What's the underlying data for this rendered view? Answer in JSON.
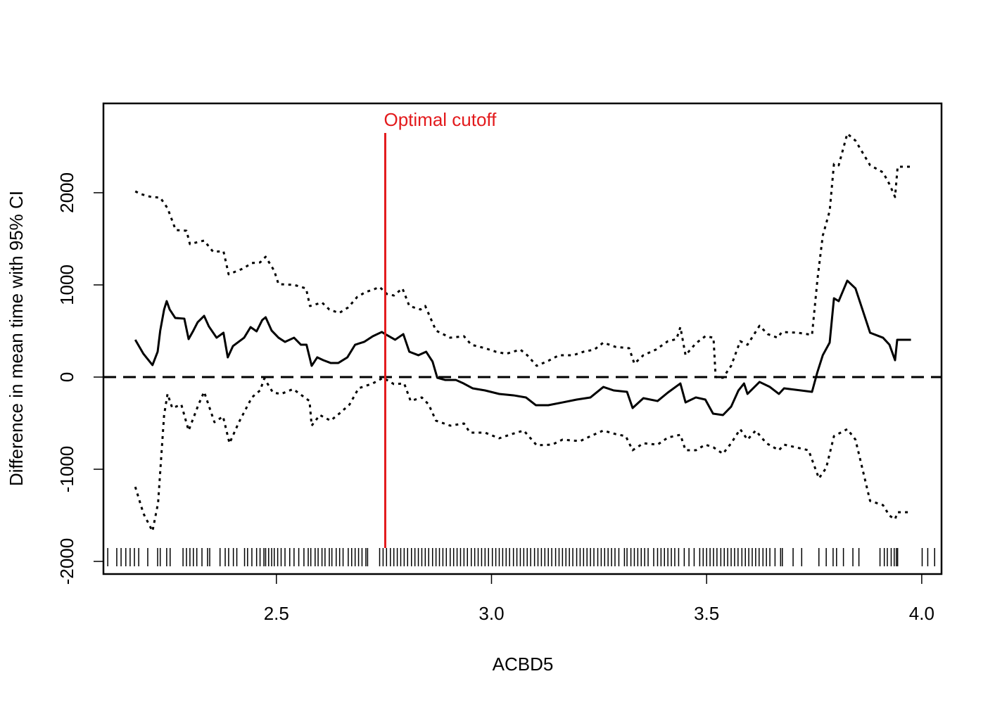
{
  "chart_data": {
    "type": "line",
    "x_label": "ACBD5",
    "y_label": "Difference in mean time with 95% CI",
    "xlim": [
      2.098,
      4.046
    ],
    "ylim": [
      -2137,
      2969
    ],
    "xticks": [
      2.5,
      {
        "value": 3,
        "label": "3.0"
      },
      3.5,
      {
        "value": 4,
        "label": "4.0"
      }
    ],
    "yticks": [
      -2000,
      -1000,
      0,
      1000,
      2000
    ],
    "reference_line": 0,
    "cutoff": 2.753,
    "cutoff_label": "Optimal cutoff",
    "cutoff_color": "#e31a1c",
    "series": [
      {
        "color": "#000000",
        "style": "solid",
        "x": [
          2.172,
          2.191,
          2.212,
          2.224,
          2.23,
          2.239,
          2.245,
          2.252,
          2.265,
          2.286,
          2.296,
          2.307,
          2.317,
          2.332,
          2.343,
          2.361,
          2.377,
          2.387,
          2.399,
          2.425,
          2.44,
          2.454,
          2.467,
          2.475,
          2.489,
          2.505,
          2.52,
          2.541,
          2.557,
          2.57,
          2.582,
          2.595,
          2.609,
          2.626,
          2.644,
          2.665,
          2.683,
          2.704,
          2.724,
          2.745,
          2.753,
          2.776,
          2.795,
          2.809,
          2.83,
          2.848,
          2.863,
          2.874,
          2.892,
          2.917,
          2.935,
          2.956,
          2.985,
          3.018,
          3.051,
          3.08,
          3.103,
          3.132,
          3.165,
          3.198,
          3.23,
          3.26,
          3.284,
          3.315,
          3.328,
          3.353,
          3.386,
          3.41,
          3.439,
          3.451,
          3.475,
          3.497,
          3.515,
          3.538,
          3.557,
          3.574,
          3.587,
          3.595,
          3.623,
          3.647,
          3.668,
          3.68,
          3.745,
          3.757,
          3.77,
          3.786,
          3.796,
          3.807,
          3.827,
          3.846,
          3.88,
          3.91,
          3.925,
          3.938,
          3.943,
          3.975
        ],
        "values": [
          405,
          252,
          130,
          275,
          504,
          733,
          824,
          733,
          641,
          634,
          412,
          504,
          595,
          664,
          550,
          427,
          481,
          214,
          336,
          427,
          542,
          496,
          618,
          649,
          504,
          427,
          382,
          427,
          351,
          351,
          122,
          214,
          183,
          153,
          153,
          214,
          351,
          382,
          443,
          489,
          466,
          405,
          466,
          275,
          237,
          275,
          168,
          -8,
          -31,
          -31,
          -69,
          -122,
          -145,
          -183,
          -198,
          -221,
          -305,
          -305,
          -275,
          -244,
          -221,
          -107,
          -145,
          -160,
          -336,
          -229,
          -260,
          -168,
          -69,
          -275,
          -221,
          -244,
          -397,
          -412,
          -321,
          -145,
          -69,
          -183,
          -53,
          -107,
          -183,
          -122,
          -160,
          46,
          237,
          374,
          855,
          824,
          1046,
          962,
          481,
          427,
          351,
          183,
          405,
          405
        ]
      },
      {
        "color": "#000000",
        "style": "dotted",
        "x": [
          2.172,
          2.185,
          2.209,
          2.23,
          2.247,
          2.266,
          2.291,
          2.299,
          2.332,
          2.353,
          2.377,
          2.389,
          2.422,
          2.443,
          2.462,
          2.475,
          2.495,
          2.505,
          2.541,
          2.569,
          2.578,
          2.606,
          2.623,
          2.646,
          2.667,
          2.688,
          2.708,
          2.724,
          2.74,
          2.757,
          2.773,
          2.793,
          2.809,
          2.835,
          2.846,
          2.871,
          2.904,
          2.936,
          2.953,
          2.985,
          3.01,
          3.034,
          3.067,
          3.083,
          3.105,
          3.132,
          3.157,
          3.19,
          3.214,
          3.239,
          3.26,
          3.288,
          3.32,
          3.332,
          3.353,
          3.382,
          3.41,
          3.43,
          3.439,
          3.451,
          3.475,
          3.497,
          3.516,
          3.521,
          3.538,
          3.557,
          3.578,
          3.595,
          3.623,
          3.642,
          3.665,
          3.675,
          3.712,
          3.745,
          3.758,
          3.77,
          3.786,
          3.796,
          3.807,
          3.827,
          3.846,
          3.88,
          3.91,
          3.925,
          3.938,
          3.944,
          3.975
        ],
        "values": [
          2015,
          1985,
          1954,
          1947,
          1832,
          1595,
          1588,
          1443,
          1481,
          1359,
          1366,
          1115,
          1176,
          1237,
          1244,
          1305,
          1153,
          1008,
          1000,
          962,
          771,
          809,
          733,
          695,
          756,
          870,
          924,
          947,
          977,
          901,
          885,
          962,
          771,
          733,
          771,
          504,
          427,
          443,
          351,
          313,
          275,
          252,
          298,
          237,
          122,
          176,
          237,
          237,
          275,
          298,
          374,
          328,
          313,
          145,
          237,
          298,
          389,
          412,
          542,
          237,
          366,
          443,
          427,
          0,
          -8,
          122,
          389,
          351,
          557,
          466,
          427,
          489,
          481,
          458,
          1076,
          1534,
          1802,
          2313,
          2298,
          2641,
          2565,
          2298,
          2221,
          2092,
          1954,
          2282,
          2282
        ]
      },
      {
        "color": "#000000",
        "style": "dotted",
        "x": [
          2.172,
          2.191,
          2.212,
          2.225,
          2.239,
          2.247,
          2.258,
          2.279,
          2.296,
          2.319,
          2.332,
          2.356,
          2.376,
          2.391,
          2.413,
          2.443,
          2.462,
          2.472,
          2.492,
          2.511,
          2.539,
          2.577,
          2.582,
          2.601,
          2.626,
          2.646,
          2.67,
          2.691,
          2.724,
          2.748,
          2.773,
          2.797,
          2.812,
          2.838,
          2.854,
          2.871,
          2.904,
          2.936,
          2.95,
          2.985,
          3.018,
          3.042,
          3.075,
          3.105,
          3.141,
          3.165,
          3.206,
          3.23,
          3.26,
          3.288,
          3.312,
          3.328,
          3.353,
          3.386,
          3.41,
          3.439,
          3.451,
          3.475,
          3.497,
          3.516,
          3.538,
          3.557,
          3.578,
          3.595,
          3.614,
          3.639,
          3.668,
          3.68,
          3.737,
          3.761,
          3.778,
          3.796,
          3.827,
          3.846,
          3.88,
          3.91,
          3.925,
          3.938,
          3.944,
          3.975
        ],
        "values": [
          -1191,
          -1481,
          -1672,
          -1366,
          -412,
          -183,
          -336,
          -298,
          -580,
          -298,
          -160,
          -489,
          -427,
          -718,
          -489,
          -221,
          -145,
          -15,
          -168,
          -183,
          -130,
          -260,
          -527,
          -412,
          -473,
          -397,
          -298,
          -122,
          -69,
          -8,
          -76,
          -69,
          -260,
          -221,
          -298,
          -473,
          -527,
          -504,
          -603,
          -603,
          -664,
          -626,
          -580,
          -740,
          -733,
          -679,
          -695,
          -641,
          -580,
          -618,
          -641,
          -794,
          -718,
          -733,
          -656,
          -626,
          -794,
          -794,
          -733,
          -763,
          -832,
          -718,
          -565,
          -679,
          -580,
          -718,
          -794,
          -733,
          -794,
          -1099,
          -985,
          -641,
          -565,
          -679,
          -1344,
          -1389,
          -1504,
          -1542,
          -1466,
          -1466
        ]
      }
    ],
    "rug": [
      2.108,
      2.129,
      2.139,
      2.15,
      2.16,
      2.17,
      2.18,
      2.201,
      2.224,
      2.23,
      2.245,
      2.253,
      2.283,
      2.291,
      2.299,
      2.307,
      2.315,
      2.327,
      2.34,
      2.345,
      2.369,
      2.381,
      2.389,
      2.4,
      2.408,
      2.426,
      2.433,
      2.443,
      2.454,
      2.462,
      2.471,
      2.475,
      2.482,
      2.489,
      2.495,
      2.503,
      2.511,
      2.52,
      2.531,
      2.541,
      2.552,
      2.564,
      2.574,
      2.58,
      2.59,
      2.597,
      2.606,
      2.613,
      2.623,
      2.629,
      2.639,
      2.647,
      2.655,
      2.667,
      2.675,
      2.683,
      2.691,
      2.699,
      2.708,
      2.712,
      2.74,
      2.748,
      2.756,
      2.765,
      2.773,
      2.781,
      2.789,
      2.797,
      2.805,
      2.814,
      2.822,
      2.83,
      2.838,
      2.846,
      2.854,
      2.863,
      2.871,
      2.879,
      2.887,
      2.895,
      2.904,
      2.912,
      2.92,
      2.928,
      2.936,
      2.944,
      2.953,
      2.961,
      2.969,
      2.977,
      2.985,
      2.993,
      3.002,
      3.01,
      3.018,
      3.026,
      3.034,
      3.042,
      3.051,
      3.059,
      3.067,
      3.075,
      3.083,
      3.091,
      3.1,
      3.108,
      3.116,
      3.124,
      3.132,
      3.14,
      3.149,
      3.157,
      3.165,
      3.173,
      3.181,
      3.189,
      3.198,
      3.206,
      3.214,
      3.222,
      3.23,
      3.238,
      3.247,
      3.255,
      3.263,
      3.271,
      3.279,
      3.287,
      3.296,
      3.309,
      3.315,
      3.324,
      3.332,
      3.34,
      3.348,
      3.356,
      3.364,
      3.377,
      3.386,
      3.394,
      3.402,
      3.41,
      3.418,
      3.426,
      3.435,
      3.448,
      3.459,
      3.471,
      3.484,
      3.492,
      3.5,
      3.508,
      3.516,
      3.524,
      3.533,
      3.541,
      3.549,
      3.557,
      3.565,
      3.573,
      3.582,
      3.59,
      3.598,
      3.606,
      3.614,
      3.622,
      3.631,
      3.639,
      3.647,
      3.659,
      3.672,
      3.676,
      3.701,
      3.721,
      3.761,
      3.778,
      3.794,
      3.802,
      3.818,
      3.84,
      3.854,
      3.903,
      3.913,
      3.92,
      3.929,
      3.936,
      3.941,
      3.944,
      4.001,
      4.014,
      4.03
    ]
  }
}
